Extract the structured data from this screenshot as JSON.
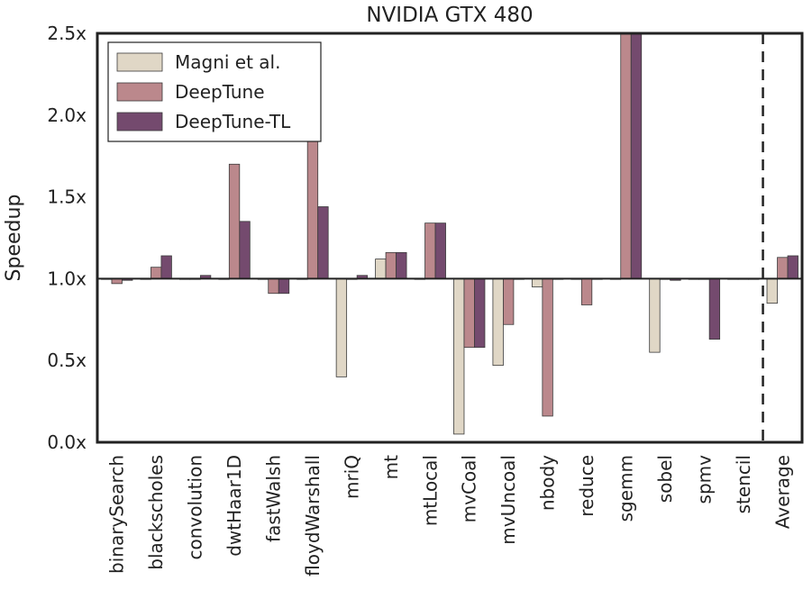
{
  "chart_data": {
    "type": "bar",
    "title": "NVIDIA GTX 480",
    "xlabel": "",
    "ylabel": "Speedup",
    "ylim": [
      0,
      2.5
    ],
    "baseline": 1.0,
    "yticks": [
      0.0,
      0.5,
      1.0,
      1.5,
      2.0,
      2.5
    ],
    "ytick_labels": [
      "0.0x",
      "0.5x",
      "1.0x",
      "1.5x",
      "2.0x",
      "2.5x"
    ],
    "categories": [
      "binarySearch",
      "blackscholes",
      "convolution",
      "dwtHaar1D",
      "fastWalsh",
      "floydWarshall",
      "mriQ",
      "mt",
      "mtLocal",
      "mvCoal",
      "mvUncoal",
      "nbody",
      "reduce",
      "sgemm",
      "sobel",
      "spmv",
      "stencil",
      "Average"
    ],
    "series": [
      {
        "name": "Magni et al.",
        "color": "#e0d7c6",
        "values": [
          1.0,
          1.0,
          1.0,
          1.0,
          1.0,
          1.0,
          0.4,
          1.12,
          1.0,
          0.05,
          0.47,
          0.95,
          1.0,
          1.0,
          0.55,
          1.0,
          1.0,
          0.85
        ]
      },
      {
        "name": "DeepTune",
        "color": "#bb888c",
        "values": [
          0.97,
          1.07,
          1.0,
          1.7,
          0.91,
          1.9,
          1.0,
          1.16,
          1.34,
          0.58,
          0.72,
          0.16,
          0.84,
          2.5,
          1.0,
          1.0,
          1.0,
          1.13
        ]
      },
      {
        "name": "DeepTune-TL",
        "color": "#744a6e",
        "values": [
          0.99,
          1.14,
          1.02,
          1.35,
          0.91,
          1.44,
          1.02,
          1.16,
          1.34,
          0.58,
          1.0,
          1.0,
          1.0,
          2.5,
          0.99,
          0.63,
          1.0,
          1.14
        ]
      }
    ],
    "separator_before": "Average",
    "grid": false,
    "legend_position": "top-left"
  }
}
